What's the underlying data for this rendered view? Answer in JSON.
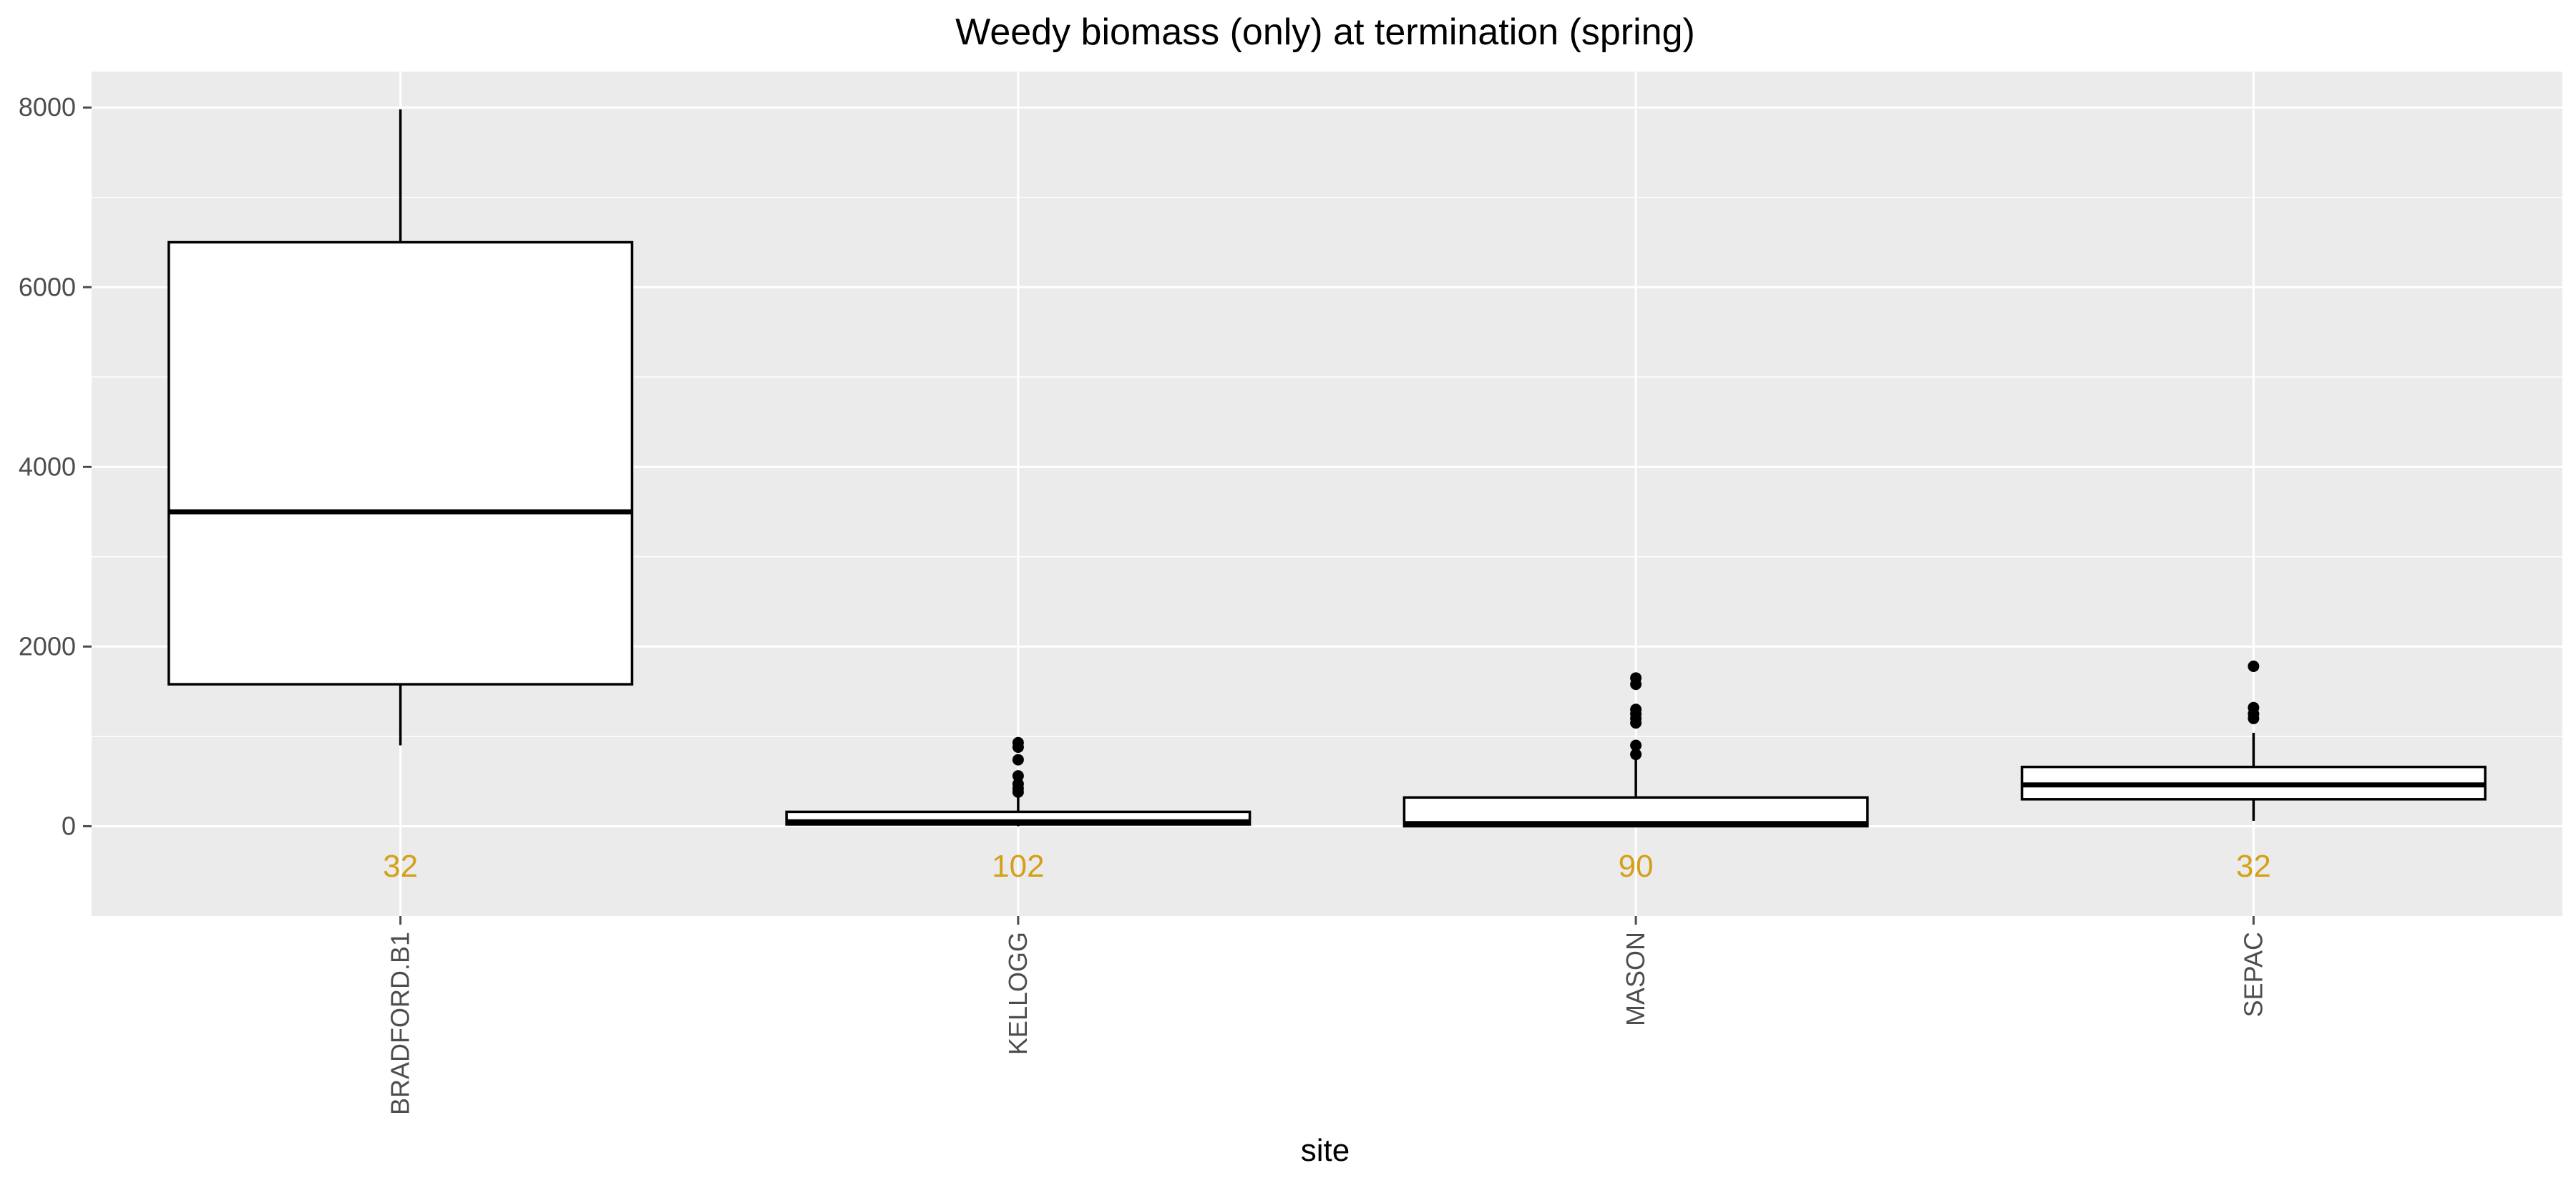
{
  "chart_data": {
    "type": "boxplot",
    "title": "Weedy biomass (only) at termination (spring)",
    "xlabel": "site",
    "ylabel": "",
    "ylim": [
      -1000,
      8400
    ],
    "yticks": [
      0,
      2000,
      4000,
      6000,
      8000
    ],
    "grid": true,
    "legend": "none",
    "categories": [
      "BRADFORD.B1",
      "KELLOGG",
      "MASON",
      "SEPAC"
    ],
    "boxes": [
      {
        "site": "BRADFORD.B1",
        "lower_whisker": 900,
        "q1": 1580,
        "median": 3500,
        "q3": 6500,
        "upper_whisker": 7980,
        "outliers": [],
        "n": "32"
      },
      {
        "site": "KELLOGG",
        "lower_whisker": 0,
        "q1": 20,
        "median": 50,
        "q3": 160,
        "upper_whisker": 320,
        "outliers": [
          380,
          420,
          470,
          560,
          740,
          880,
          930
        ],
        "n": "102"
      },
      {
        "site": "MASON",
        "lower_whisker": 0,
        "q1": 0,
        "median": 30,
        "q3": 320,
        "upper_whisker": 740,
        "outliers": [
          800,
          900,
          1150,
          1200,
          1250,
          1300,
          1580,
          1650
        ],
        "n": "90"
      },
      {
        "site": "SEPAC",
        "lower_whisker": 60,
        "q1": 300,
        "median": 460,
        "q3": 660,
        "upper_whisker": 1040,
        "outliers": [
          1200,
          1250,
          1320,
          1780
        ],
        "n": "32"
      }
    ],
    "colors": {
      "panel_background": "#ebebeb",
      "grid": "#ffffff",
      "box_fill": "#ffffff",
      "box_stroke": "#000000",
      "count_label": "#d4a017",
      "tick": "#4d4d4d"
    }
  }
}
